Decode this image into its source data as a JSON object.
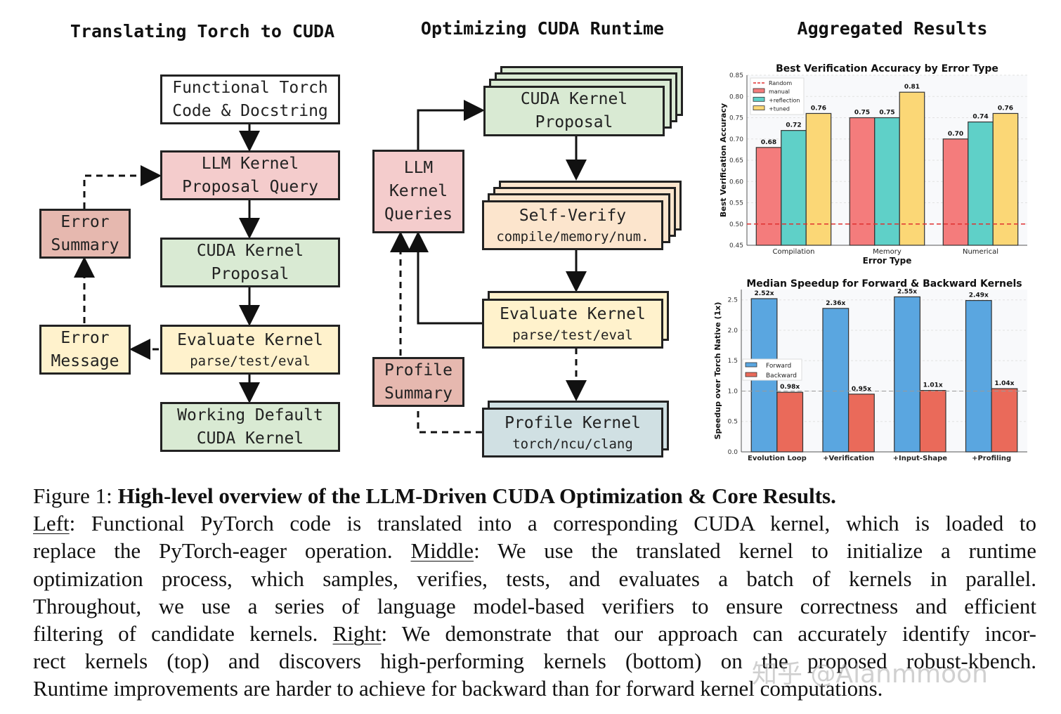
{
  "titles": {
    "left": "Translating Torch to CUDA",
    "middle": "Optimizing CUDA Runtime",
    "right": "Aggregated Results"
  },
  "left_diagram": {
    "functional": [
      "Functional Torch",
      "Code & Docstring"
    ],
    "llm_query": [
      "LLM Kernel",
      "Proposal Query"
    ],
    "cuda_proposal": [
      "CUDA Kernel",
      "Proposal"
    ],
    "evaluate": [
      "Evaluate Kernel",
      "parse/test/eval"
    ],
    "working": [
      "Working Default",
      "CUDA Kernel"
    ],
    "error_summary": [
      "Error",
      "Summary"
    ],
    "error_message": [
      "Error",
      "Message"
    ]
  },
  "middle_diagram": {
    "cuda_proposal": [
      "CUDA Kernel",
      "Proposal"
    ],
    "llm_queries": [
      "LLM",
      "Kernel",
      "Queries"
    ],
    "self_verify": [
      "Self-Verify",
      "compile/memory/num."
    ],
    "evaluate": [
      "Evaluate Kernel",
      "parse/test/eval"
    ],
    "profile_summary": [
      "Profile",
      "Summary"
    ],
    "profile_kernel": [
      "Profile Kernel",
      "torch/ncu/clang"
    ]
  },
  "chart_data": [
    {
      "type": "bar",
      "title": "Best Verification Accuracy by Error Type",
      "xlabel": "Error Type",
      "ylabel": "Best Verification Accuracy",
      "ylim": [
        0.45,
        0.85
      ],
      "yticks": [
        "0.45",
        "0.50",
        "0.55",
        "0.60",
        "0.65",
        "0.70",
        "0.75",
        "0.80",
        "0.85"
      ],
      "categories": [
        "Compilation",
        "Memory",
        "Numerical"
      ],
      "series": [
        {
          "name": "manual",
          "color": "#f47c7c",
          "values": [
            0.68,
            0.75,
            0.7
          ],
          "labels": [
            "0.68",
            "0.75",
            "0.70"
          ]
        },
        {
          "name": "+reflection",
          "color": "#5fd0c8",
          "values": [
            0.72,
            0.75,
            0.74
          ],
          "labels": [
            "0.72",
            "0.75",
            "0.74"
          ]
        },
        {
          "name": "+tuned",
          "color": "#fbd776",
          "values": [
            0.76,
            0.81,
            0.76
          ],
          "labels": [
            "0.76",
            "0.81",
            "0.76"
          ]
        }
      ],
      "reference_line": {
        "name": "Random",
        "value": 0.5,
        "color": "#e03030"
      },
      "legend": "top-left",
      "grid": true
    },
    {
      "type": "bar",
      "title": "Median Speedup for Forward & Backward Kernels",
      "xlabel": "",
      "ylabel": "Speedup over Torch Native (1x)",
      "ylim": [
        0,
        2.67
      ],
      "yticks": [
        "0.0",
        "0.5",
        "1.0",
        "1.5",
        "2.0",
        "2.5"
      ],
      "categories": [
        "Evolution Loop",
        "+Verification",
        "+Input-Shape",
        "+Profiling"
      ],
      "series": [
        {
          "name": "Forward",
          "color": "#5aa6e0",
          "values": [
            2.52,
            2.36,
            2.55,
            2.49
          ],
          "labels": [
            "2.52x",
            "2.36x",
            "2.55x",
            "2.49x"
          ]
        },
        {
          "name": "Backward",
          "color": "#ea6a5a",
          "values": [
            0.98,
            0.95,
            1.01,
            1.04
          ],
          "labels": [
            "0.98x",
            "0.95x",
            "1.01x",
            "1.04x"
          ]
        }
      ],
      "reference_line": {
        "value": 1.0,
        "color": "#999999"
      },
      "legend": "center-left",
      "grid": true
    }
  ],
  "caption": {
    "fig_label": "Figure 1: ",
    "fig_title": "High-level overview of the LLM-Driven CUDA Optimization & Core Results.",
    "left_label": "Left",
    "l2": ": Functional PyTorch code is translated into a corresponding CUDA kernel, which is loaded to",
    "l3a": "replace the PyTorch-eager operation. ",
    "middle_label": "Middle",
    "l3b": ": We use the translated kernel to initialize a runtime",
    "l4": "optimization process, which samples, verifies, tests, and evaluates a batch of kernels in parallel.",
    "l5": "Throughout, we use a series of language model-based verifiers to ensure correctness and efficient",
    "l6a": "filtering of candidate kernels. ",
    "right_label": "Right",
    "l6b": ": We demonstrate that our approach can accurately identify incor-",
    "l7": "rect kernels (top) and discovers high-performing kernels (bottom) on the proposed robust-kbench.",
    "l8": "Runtime improvements are harder to achieve for backward than for forward kernel computations."
  },
  "watermark": "知乎 @Alanmmoon"
}
